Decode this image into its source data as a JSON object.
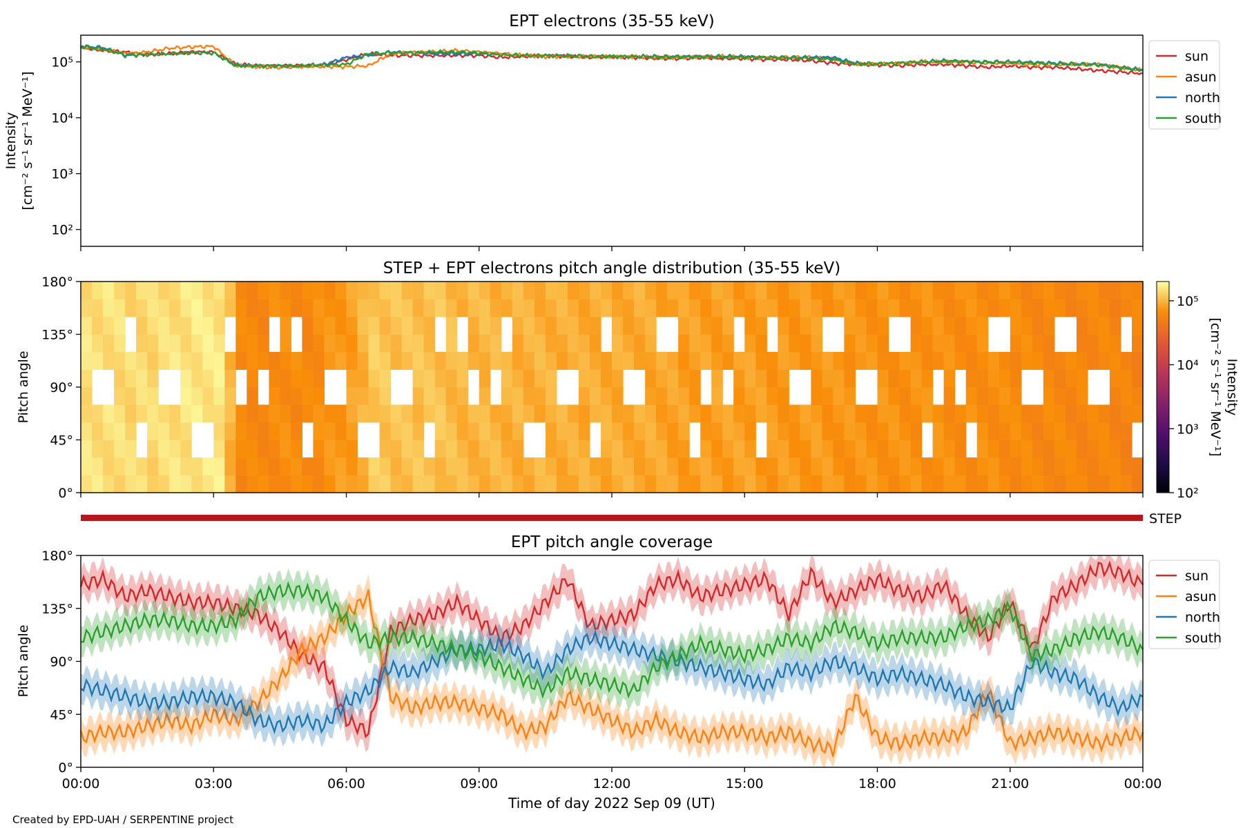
{
  "footer": "Created by EPD-UAH / SERPENTINE project",
  "xlabel": "Time of day 2022 Sep 09 (UT)",
  "xticks": [
    "00:00",
    "03:00",
    "06:00",
    "09:00",
    "12:00",
    "15:00",
    "18:00",
    "21:00",
    "00:00"
  ],
  "colors": {
    "sun": "#d62728",
    "asun": "#ff7f0e",
    "north": "#1f77b4",
    "south": "#2ca02c",
    "step_bar": "#b2181b"
  },
  "chart_data": [
    {
      "type": "line",
      "title": "EPT electrons (35-55 keV)",
      "ylabel_line1": "Intensity",
      "ylabel_line2": "[cm⁻² s⁻¹ sr⁻¹ MeV⁻¹]",
      "yscale": "log",
      "ylim": [
        50,
        300000
      ],
      "yticks": [
        {
          "v": 100,
          "t": "10²"
        },
        {
          "v": 1000,
          "t": "10³"
        },
        {
          "v": 10000,
          "t": "10⁴"
        },
        {
          "v": 100000,
          "t": "10⁵"
        }
      ],
      "xlim_hours": [
        0,
        24
      ],
      "legend": "outside-right",
      "x_hours": [
        0,
        0.5,
        1,
        1.5,
        2,
        2.5,
        3,
        3.5,
        4,
        4.5,
        5,
        5.5,
        6,
        6.5,
        7,
        7.5,
        8,
        8.5,
        9,
        9.5,
        10,
        10.5,
        11,
        11.5,
        12,
        12.5,
        13,
        13.5,
        14,
        14.5,
        15,
        15.5,
        16,
        16.5,
        17,
        17.5,
        18,
        18.5,
        19,
        19.5,
        20,
        20.5,
        21,
        21.5,
        22,
        22.5,
        23,
        23.5,
        24
      ],
      "series": [
        {
          "name": "sun",
          "color": "#d62728",
          "values": [
            180000,
            160000,
            150000,
            135000,
            140000,
            150000,
            150000,
            90000,
            85000,
            85000,
            85000,
            85000,
            110000,
            140000,
            130000,
            130000,
            130000,
            130000,
            130000,
            120000,
            125000,
            130000,
            125000,
            120000,
            125000,
            120000,
            115000,
            115000,
            120000,
            115000,
            115000,
            110000,
            110000,
            105000,
            95000,
            90000,
            88000,
            85000,
            90000,
            90000,
            85000,
            80000,
            85000,
            80000,
            80000,
            75000,
            70000,
            66000,
            62000
          ]
        },
        {
          "name": "asun",
          "color": "#ff7f0e",
          "values": [
            180000,
            170000,
            140000,
            150000,
            175000,
            185000,
            190000,
            85000,
            82000,
            80000,
            82000,
            83000,
            82000,
            85000,
            140000,
            150000,
            150000,
            160000,
            150000,
            140000,
            130000,
            125000,
            125000,
            125000,
            125000,
            125000,
            120000,
            120000,
            125000,
            125000,
            120000,
            120000,
            120000,
            120000,
            115000,
            90000,
            92000,
            95000,
            100000,
            100000,
            100000,
            95000,
            95000,
            90000,
            90000,
            90000,
            90000,
            80000,
            70000
          ]
        },
        {
          "name": "north",
          "color": "#1f77b4",
          "values": [
            190000,
            180000,
            130000,
            135000,
            140000,
            145000,
            145000,
            88000,
            85000,
            85000,
            85000,
            90000,
            120000,
            130000,
            150000,
            145000,
            140000,
            140000,
            140000,
            135000,
            130000,
            130000,
            130000,
            125000,
            125000,
            125000,
            125000,
            125000,
            125000,
            125000,
            125000,
            120000,
            120000,
            120000,
            120000,
            95000,
            92000,
            95000,
            100000,
            105000,
            102000,
            100000,
            100000,
            98000,
            95000,
            92000,
            90000,
            80000,
            72000
          ]
        },
        {
          "name": "south",
          "color": "#2ca02c",
          "values": [
            185000,
            170000,
            135000,
            135000,
            140000,
            145000,
            145000,
            85000,
            84000,
            84000,
            85000,
            88000,
            90000,
            140000,
            145000,
            145000,
            150000,
            150000,
            145000,
            135000,
            130000,
            130000,
            128000,
            125000,
            125000,
            125000,
            122000,
            122000,
            122000,
            122000,
            120000,
            118000,
            118000,
            115000,
            110000,
            92000,
            92000,
            95000,
            100000,
            102000,
            100000,
            98000,
            98000,
            95000,
            92000,
            90000,
            88000,
            78000,
            70000
          ]
        }
      ]
    },
    {
      "type": "heatmap",
      "title": "STEP + EPT electrons pitch angle distribution (35-55 keV)",
      "ylabel": "Pitch angle",
      "ylim": [
        0,
        180
      ],
      "yticks": [
        "0°",
        "45°",
        "90°",
        "135°",
        "180°"
      ],
      "xlim_hours": [
        0,
        24
      ],
      "colorbar": {
        "label_line1": "Intensity",
        "label_line2": "[cm⁻² s⁻¹ sr⁻¹ MeV⁻¹]",
        "scale": "log",
        "range": [
          100,
          200000
        ],
        "ticks": [
          {
            "v": 100,
            "t": "10²"
          },
          {
            "v": 1000,
            "t": "10³"
          },
          {
            "v": 10000,
            "t": "10⁴"
          },
          {
            "v": 100000,
            "t": "10⁵"
          }
        ],
        "colormap": "inferno"
      },
      "x_hours": [
        0,
        0.5,
        1,
        1.5,
        2,
        2.5,
        3,
        3.5,
        4,
        4.5,
        5,
        5.5,
        6,
        6.5,
        7,
        7.5,
        8,
        8.5,
        9,
        9.5,
        10,
        10.5,
        11,
        11.5,
        12,
        12.5,
        13,
        13.5,
        14,
        14.5,
        15,
        15.5,
        16,
        16.5,
        17,
        17.5,
        18,
        18.5,
        19,
        19.5,
        20,
        20.5,
        21,
        21.5,
        22,
        22.5,
        23,
        23.5,
        24
      ],
      "intensity": [
        150000,
        150000,
        140000,
        140000,
        150000,
        160000,
        160000,
        60000,
        60000,
        65000,
        60000,
        70000,
        80000,
        120000,
        110000,
        110000,
        110000,
        100000,
        100000,
        95000,
        95000,
        95000,
        90000,
        90000,
        90000,
        90000,
        85000,
        80000,
        80000,
        80000,
        80000,
        75000,
        75000,
        75000,
        72000,
        70000,
        70000,
        68000,
        68000,
        66000,
        65000,
        65000,
        62000,
        60000,
        60000,
        58000,
        58000,
        55000,
        55000
      ],
      "step_label": "STEP"
    },
    {
      "type": "line",
      "title": "EPT pitch angle coverage",
      "ylabel": "Pitch angle",
      "ylim": [
        0,
        180
      ],
      "yticks": [
        "0°",
        "45°",
        "90°",
        "135°",
        "180°"
      ],
      "xlim_hours": [
        0,
        24
      ],
      "legend": "outside-right",
      "x_hours": [
        0,
        0.5,
        1,
        1.5,
        2,
        2.5,
        3,
        3.5,
        4,
        4.5,
        5,
        5.5,
        6,
        6.5,
        7,
        7.5,
        8,
        8.5,
        9,
        9.5,
        10,
        10.5,
        11,
        11.5,
        12,
        12.5,
        13,
        13.5,
        14,
        14.5,
        15,
        15.5,
        16,
        16.5,
        17,
        17.5,
        18,
        18.5,
        19,
        19.5,
        20,
        20.5,
        21,
        21.5,
        22,
        22.5,
        23,
        23.5,
        24
      ],
      "series": [
        {
          "name": "sun",
          "color": "#d62728",
          "values": [
            155,
            160,
            145,
            150,
            145,
            140,
            140,
            135,
            130,
            115,
            95,
            85,
            40,
            30,
            115,
            125,
            130,
            140,
            125,
            110,
            120,
            140,
            160,
            120,
            125,
            130,
            155,
            160,
            145,
            150,
            155,
            160,
            130,
            165,
            140,
            150,
            160,
            150,
            145,
            155,
            130,
            110,
            140,
            100,
            145,
            155,
            170,
            165,
            155
          ]
        },
        {
          "name": "asun",
          "color": "#ff7f0e",
          "values": [
            25,
            30,
            30,
            35,
            40,
            35,
            45,
            40,
            55,
            75,
            100,
            110,
            130,
            145,
            60,
            50,
            55,
            55,
            50,
            45,
            30,
            35,
            60,
            50,
            40,
            30,
            40,
            30,
            25,
            30,
            30,
            25,
            30,
            20,
            15,
            60,
            25,
            20,
            25,
            25,
            30,
            65,
            20,
            25,
            30,
            25,
            20,
            25,
            30
          ]
        },
        {
          "name": "north",
          "color": "#1f77b4",
          "values": [
            70,
            65,
            60,
            55,
            55,
            60,
            60,
            55,
            40,
            35,
            40,
            35,
            55,
            65,
            85,
            80,
            90,
            100,
            100,
            105,
            95,
            80,
            100,
            110,
            105,
            100,
            95,
            90,
            85,
            80,
            75,
            70,
            85,
            80,
            90,
            85,
            75,
            80,
            75,
            70,
            60,
            55,
            50,
            90,
            80,
            75,
            60,
            50,
            60
          ]
        },
        {
          "name": "south",
          "color": "#2ca02c",
          "values": [
            110,
            115,
            120,
            125,
            125,
            120,
            120,
            125,
            145,
            150,
            150,
            145,
            125,
            105,
            110,
            110,
            105,
            100,
            95,
            85,
            75,
            65,
            80,
            75,
            70,
            65,
            85,
            95,
            105,
            100,
            95,
            100,
            110,
            105,
            120,
            115,
            105,
            110,
            110,
            110,
            120,
            125,
            135,
            95,
            100,
            110,
            115,
            110,
            100
          ]
        }
      ]
    }
  ]
}
